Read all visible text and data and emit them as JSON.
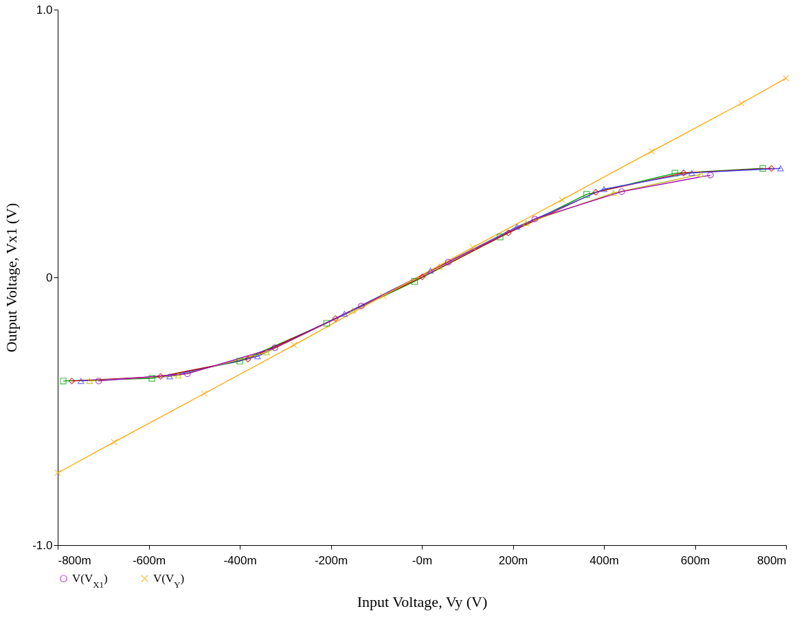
{
  "chart_data": {
    "type": "line",
    "xlabel": "Input Voltage, Vy (V)",
    "ylabel": "Output  Voltage, Vx1 (V)",
    "xlim": [
      -800,
      800
    ],
    "xticks": [
      {
        "value": -800,
        "label": "-800m"
      },
      {
        "value": -600,
        "label": "-600m"
      },
      {
        "value": -400,
        "label": "-400m"
      },
      {
        "value": -200,
        "label": "-200m"
      },
      {
        "value": 0,
        "label": "-0m"
      },
      {
        "value": 200,
        "label": "200m"
      },
      {
        "value": 400,
        "label": "400m"
      },
      {
        "value": 600,
        "label": "600m"
      },
      {
        "value": 800,
        "label": "800m"
      }
    ],
    "ylim": [
      -1,
      1
    ],
    "yticks": [
      {
        "value": -1,
        "label": "-1.0"
      },
      0,
      {
        "value": 1,
        "label": "1.0"
      }
    ],
    "grid": false,
    "legend": "bottom left",
    "series": [
      {
        "color": "#00a000",
        "marker": "square",
        "x": [
          -788,
          -593,
          -400,
          -209,
          -16,
          172,
          362,
          556,
          749
        ],
        "values": [
          -0.387,
          -0.377,
          -0.313,
          -0.171,
          -0.015,
          0.151,
          0.31,
          0.389,
          0.407
        ]
      },
      {
        "color": "#c00000",
        "marker": "diamond",
        "x": [
          -769,
          -574,
          -382,
          -190,
          1,
          190,
          382,
          575,
          768
        ],
        "values": [
          -0.387,
          -0.37,
          -0.305,
          -0.154,
          0.002,
          0.166,
          0.318,
          0.39,
          0.407
        ]
      },
      {
        "color": "#4040ff",
        "marker": "triangle",
        "x": [
          -749,
          -554,
          -361,
          -170,
          19,
          209,
          400,
          593,
          788
        ],
        "values": [
          -0.387,
          -0.37,
          -0.295,
          -0.136,
          0.025,
          0.189,
          0.33,
          0.39,
          0.407
        ]
      },
      {
        "color": "#c0b000",
        "marker": "triangle",
        "x": [
          -730,
          -535,
          -341,
          -152,
          38,
          229,
          421,
          613
        ],
        "values": [
          -0.387,
          -0.367,
          -0.28,
          -0.124,
          0.04,
          0.203,
          0.315,
          0.385
        ]
      },
      {
        "name": "V(V$_{X1}$)",
        "color": "#a000c0",
        "marker": "circle",
        "x": [
          -710,
          -515,
          -323,
          -133,
          58,
          248,
          439,
          634
        ],
        "values": [
          -0.387,
          -0.36,
          -0.263,
          -0.107,
          0.057,
          0.218,
          0.32,
          0.382
        ]
      },
      {
        "name": "V(V$_{Y}$)",
        "color": "#ffa500",
        "marker": "cross",
        "x": [
          -800,
          -676,
          -478,
          -281,
          -85,
          112,
          308,
          505,
          702,
          800
        ],
        "values": [
          -0.73,
          -0.615,
          -0.434,
          -0.253,
          -0.069,
          0.112,
          0.29,
          0.471,
          0.65,
          0.744
        ]
      }
    ]
  }
}
